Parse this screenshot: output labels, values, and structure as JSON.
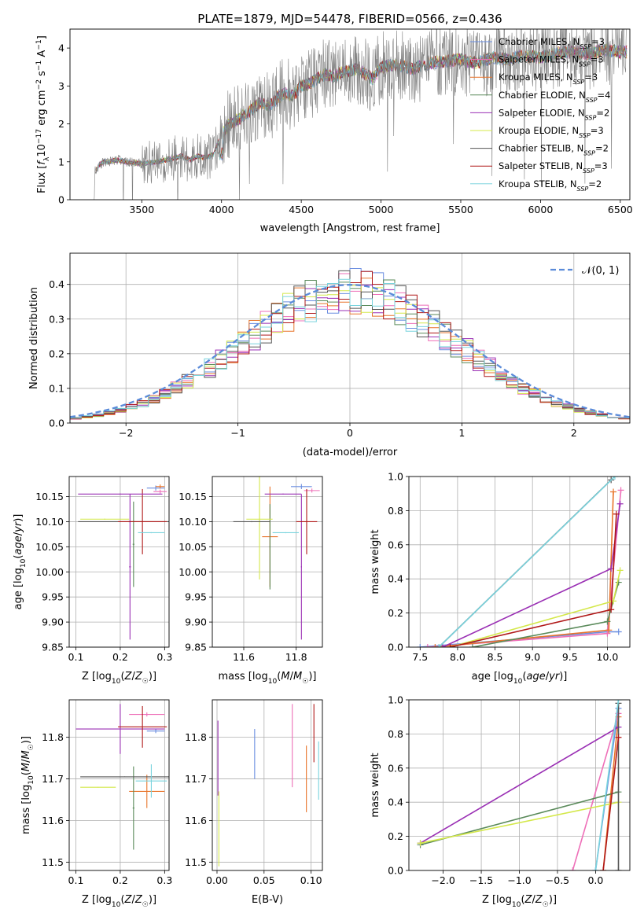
{
  "figure_title": "PLATE=1879, MJD=54478, FIBERID=0566, z=0.436",
  "colors": {
    "chabrier_miles": "#6a8de0",
    "salpeter_miles": "#ee6fb8",
    "kroupa_miles": "#e8742a",
    "chabrier_elodie": "#5a8a5a",
    "salpeter_elodie": "#9a2fb4",
    "kroupa_elodie": "#d4e84a",
    "chabrier_stelib": "#555555",
    "salpeter_stelib": "#b01818",
    "kroupa_stelib": "#79d3dd",
    "data": "#808080"
  },
  "chart_data": [
    {
      "id": "spectrum",
      "type": "line",
      "title": "PLATE=1879, MJD=54478, FIBERID=0566, z=0.436",
      "xlabel": "wavelength [Angstrom, rest frame]",
      "ylabel": "Flux [f_λ 10^-17 erg cm^-2 s^-1 A^-1]",
      "xlim": [
        3050,
        6560
      ],
      "ylim": [
        0,
        4.5
      ],
      "xticks": [
        "3500",
        "4000",
        "4500",
        "5000",
        "5500",
        "6000",
        "6500"
      ],
      "yticks": [
        "0",
        "1",
        "2",
        "3",
        "4"
      ],
      "grid": false,
      "legend_position": "top-right",
      "legend": [
        "Chabrier MILES, N_SSP=3",
        "Salpeter MILES, N_SSP=3",
        "Kroupa MILES, N_SSP=3",
        "Chabrier ELODIE, N_SSP=4",
        "Salpeter ELODIE, N_SSP=2",
        "Kroupa ELODIE, N_SSP=3",
        "Chabrier STELIB, N_SSP=2",
        "Salpeter STELIB, N_SSP=3",
        "Kroupa STELIB, N_SSP=2"
      ],
      "data_envelope": {
        "x": [
          3200,
          3230,
          3260,
          3300,
          3350,
          3400,
          3450,
          3500,
          3550,
          3600,
          3650,
          3700,
          3750,
          3800,
          3850,
          3900,
          3950,
          4000,
          4050,
          4100,
          4150,
          4200,
          4250,
          4300,
          4350,
          4400,
          4450,
          4500,
          4550,
          4600,
          4650,
          4700,
          4750,
          4800,
          4850,
          4900,
          4950,
          5000,
          5100,
          5200,
          5300,
          5400,
          5500,
          5600,
          5700,
          5800,
          5900,
          6000,
          6100,
          6200,
          6300,
          6400,
          6500
        ],
        "y": [
          0.7,
          0.9,
          1.0,
          1.0,
          1.05,
          1.0,
          0.98,
          0.95,
          0.98,
          1.0,
          1.05,
          1.1,
          1.15,
          1.05,
          1.15,
          1.1,
          1.2,
          1.7,
          2.0,
          2.1,
          2.25,
          2.4,
          2.6,
          2.45,
          2.7,
          2.8,
          2.75,
          3.0,
          3.05,
          3.2,
          3.3,
          3.25,
          3.35,
          3.4,
          3.45,
          3.3,
          3.2,
          3.5,
          3.55,
          3.45,
          3.6,
          3.65,
          3.7,
          3.6,
          3.75,
          3.7,
          3.8,
          3.75,
          3.85,
          3.9,
          3.85,
          3.95,
          3.9
        ]
      }
    },
    {
      "id": "residuals",
      "type": "line",
      "xlabel": "(data-model)/error",
      "ylabel": "Normed distribution",
      "xlim": [
        -2.5,
        2.5
      ],
      "ylim": [
        0,
        0.49
      ],
      "xticks": [
        "−2",
        "−1",
        "0",
        "1",
        "2"
      ],
      "yticks": [
        "0.0",
        "0.1",
        "0.2",
        "0.3",
        "0.4"
      ],
      "grid": true,
      "legend_position": "top-right",
      "legend": [
        "𝒩(0, 1)"
      ],
      "series": [
        {
          "name": "𝒩(0, 1)",
          "kind": "gaussian",
          "mean": 0,
          "sigma": 1
        }
      ]
    },
    {
      "id": "age-vs-Z",
      "type": "scatter",
      "xlabel": "Z [log10(Z/Z☉)]",
      "ylabel": "age [log10(age/yr)]",
      "xlim": [
        0.085,
        0.31
      ],
      "ylim": [
        9.85,
        10.19
      ],
      "xticks": [
        "0.1",
        "0.2",
        "0.3"
      ],
      "yticks": [
        "9.85",
        "9.90",
        "9.95",
        "10.00",
        "10.05",
        "10.10",
        "10.15"
      ],
      "grid": true,
      "points": [
        {
          "series": "Chabrier MILES",
          "x": 0.28,
          "y": 10.167,
          "xerr": 0.02,
          "yerr": 0.005
        },
        {
          "series": "Salpeter MILES",
          "x": 0.29,
          "y": 10.16,
          "xerr": 0.015,
          "yerr": 0.004
        },
        {
          "series": "Kroupa MILES",
          "x": 0.29,
          "y": 10.17,
          "xerr": 0.01,
          "yerr": 0.004
        },
        {
          "series": "Chabrier ELODIE",
          "x": 0.23,
          "y": 10.055,
          "xerr": 0.002,
          "yerr": 0.085
        },
        {
          "series": "Salpeter ELODIE",
          "x": 0.222,
          "y": 10.01,
          "xerr": 0.002,
          "yerr": 0.145
        },
        {
          "series": "Kroupa ELODIE",
          "x": 0.165,
          "y": 10.105,
          "xerr": 0.055,
          "yerr": 0.001
        },
        {
          "series": "Chabrier STELIB",
          "x": 0.22,
          "y": 10.1,
          "xerr": 0.115,
          "yerr": 0.001
        },
        {
          "series": "Salpeter STELIB",
          "x": 0.25,
          "y": 10.1,
          "xerr": 0.055,
          "yerr": 0.065
        },
        {
          "series": "Kroupa STELIB",
          "x": 0.27,
          "y": 10.078,
          "xerr": 0.03,
          "yerr": 0.001
        },
        {
          "series": "Salpeter ELODIE",
          "x": 0.2,
          "y": 10.155,
          "xerr": 0.095,
          "yerr": 0.001
        }
      ]
    },
    {
      "id": "age-vs-mass",
      "type": "scatter",
      "xlabel": "mass [log10(M/M☉)]",
      "ylabel": "",
      "xlim": [
        11.48,
        11.9
      ],
      "ylim": [
        9.85,
        10.19
      ],
      "xticks": [
        "11.6",
        "11.8"
      ],
      "yticks": [
        "9.85",
        "9.90",
        "9.95",
        "10.00",
        "10.05",
        "10.10",
        "10.15"
      ],
      "grid": true,
      "points": [
        {
          "series": "Chabrier MILES",
          "x": 11.82,
          "y": 10.17,
          "xerr": 0.04,
          "yerr": 0.005
        },
        {
          "series": "Salpeter MILES",
          "x": 11.86,
          "y": 10.162,
          "xerr": 0.03,
          "yerr": 0.004
        },
        {
          "series": "Kroupa MILES",
          "x": 11.7,
          "y": 10.07,
          "xerr": 0.03,
          "yerr": 0.1
        },
        {
          "series": "Chabrier ELODIE",
          "x": 11.7,
          "y": 10.05,
          "xerr": 0.002,
          "yerr": 0.085
        },
        {
          "series": "Salpeter ELODIE",
          "x": 11.82,
          "y": 10.01,
          "xerr": 0.002,
          "yerr": 0.145
        },
        {
          "series": "Kroupa ELODIE",
          "x": 11.66,
          "y": 10.105,
          "xerr": 0.05,
          "yerr": 0.12
        },
        {
          "series": "Chabrier STELIB",
          "x": 11.63,
          "y": 10.1,
          "xerr": 0.07,
          "yerr": 0.001
        },
        {
          "series": "Salpeter STELIB",
          "x": 11.84,
          "y": 10.1,
          "xerr": 0.04,
          "yerr": 0.065
        },
        {
          "series": "Kroupa STELIB",
          "x": 11.76,
          "y": 10.078,
          "xerr": 0.05,
          "yerr": 0.001
        },
        {
          "series": "Salpeter ELODIE",
          "x": 11.75,
          "y": 10.155,
          "xerr": 0.07,
          "yerr": 0.001
        }
      ]
    },
    {
      "id": "mass-weight-vs-age",
      "type": "line",
      "xlabel": "age [log10(age/yr)]",
      "ylabel": "mass weight",
      "xlim": [
        7.35,
        10.3
      ],
      "ylim": [
        0,
        1.0
      ],
      "xticks": [
        "7.5",
        "8.0",
        "8.5",
        "9.0",
        "9.5",
        "10.0"
      ],
      "yticks": [
        "0.0",
        "0.2",
        "0.4",
        "0.6",
        "0.8",
        "1.0"
      ],
      "grid": true,
      "series": [
        {
          "name": "Chabrier MILES",
          "x": [
            7.5,
            10.0,
            10.15
          ],
          "y": [
            0.0,
            0.09,
            0.09
          ]
        },
        {
          "name": "Salpeter MILES",
          "x": [
            7.6,
            10.0,
            10.18
          ],
          "y": [
            0.0,
            0.08,
            0.92
          ]
        },
        {
          "name": "Kroupa MILES",
          "x": [
            7.7,
            10.02,
            10.08
          ],
          "y": [
            0.0,
            0.1,
            0.91
          ]
        },
        {
          "name": "Chabrier ELODIE",
          "x": [
            8.2,
            10.0,
            10.15
          ],
          "y": [
            0.0,
            0.15,
            0.38
          ]
        },
        {
          "name": "Salpeter ELODIE",
          "x": [
            7.8,
            10.05,
            10.17
          ],
          "y": [
            0.0,
            0.46,
            0.84
          ]
        },
        {
          "name": "Kroupa ELODIE",
          "x": [
            7.9,
            10.08,
            10.17
          ],
          "y": [
            0.0,
            0.27,
            0.45
          ]
        },
        {
          "name": "Chabrier STELIB",
          "x": [
            7.75,
            10.05
          ],
          "y": [
            0.0,
            0.98
          ]
        },
        {
          "name": "Salpeter STELIB",
          "x": [
            7.9,
            10.05,
            10.12
          ],
          "y": [
            0.0,
            0.22,
            0.78
          ]
        },
        {
          "name": "Kroupa STELIB",
          "x": [
            7.75,
            10.1
          ],
          "y": [
            0.0,
            1.0
          ]
        }
      ]
    },
    {
      "id": "mass-vs-Z",
      "type": "scatter",
      "xlabel": "Z [log10(Z/Z☉)]",
      "ylabel": "mass [log10(M/M☉)]",
      "xlim": [
        0.085,
        0.31
      ],
      "ylim": [
        11.48,
        11.89
      ],
      "xticks": [
        "0.1",
        "0.2",
        "0.3"
      ],
      "yticks": [
        "11.5",
        "11.6",
        "11.7",
        "11.8"
      ],
      "grid": true,
      "points": [
        {
          "series": "Chabrier MILES",
          "x": 0.28,
          "y": 11.815,
          "xerr": 0.02,
          "yerr": 0.005
        },
        {
          "series": "Salpeter MILES",
          "x": 0.26,
          "y": 11.855,
          "xerr": 0.04,
          "yerr": 0.005
        },
        {
          "series": "Kroupa MILES",
          "x": 0.26,
          "y": 11.67,
          "xerr": 0.04,
          "yerr": 0.04
        },
        {
          "series": "Chabrier ELODIE",
          "x": 0.23,
          "y": 11.63,
          "xerr": 0.002,
          "yerr": 0.1
        },
        {
          "series": "Salpeter ELODIE",
          "x": 0.2,
          "y": 11.82,
          "xerr": 0.1,
          "yerr": 0.06
        },
        {
          "series": "Kroupa ELODIE",
          "x": 0.15,
          "y": 11.68,
          "xerr": 0.04,
          "yerr": 0.001
        },
        {
          "series": "Chabrier STELIB",
          "x": 0.21,
          "y": 11.705,
          "xerr": 0.1,
          "yerr": 0.001
        },
        {
          "series": "Salpeter STELIB",
          "x": 0.25,
          "y": 11.825,
          "xerr": 0.055,
          "yerr": 0.05
        },
        {
          "series": "Kroupa STELIB",
          "x": 0.27,
          "y": 11.695,
          "xerr": 0.035,
          "yerr": 0.04
        }
      ]
    },
    {
      "id": "mass-vs-ebv",
      "type": "scatter",
      "xlabel": "E(B-V)",
      "ylabel": "",
      "xlim": [
        -0.005,
        0.112
      ],
      "ylim": [
        11.48,
        11.89
      ],
      "xticks": [
        "0.00",
        "0.05",
        "0.10"
      ],
      "yticks": [
        "11.5",
        "11.6",
        "11.7",
        "11.8"
      ],
      "grid": true,
      "points": [
        {
          "series": "Chabrier MILES",
          "x": 0.04,
          "y": 11.76,
          "yerr": 0.06
        },
        {
          "series": "Salpeter MILES",
          "x": 0.08,
          "y": 11.78,
          "yerr": 0.1
        },
        {
          "series": "Kroupa MILES",
          "x": 0.095,
          "y": 11.7,
          "yerr": 0.08
        },
        {
          "series": "Salpeter ELODIE",
          "x": 0.001,
          "y": 11.75,
          "yerr": 0.09
        },
        {
          "series": "Kroupa ELODIE",
          "x": 0.002,
          "y": 11.58,
          "yerr": 0.09
        },
        {
          "series": "Salpeter STELIB",
          "x": 0.103,
          "y": 11.81,
          "yerr": 0.07
        },
        {
          "series": "Kroupa STELIB",
          "x": 0.108,
          "y": 11.72,
          "yerr": 0.07
        }
      ]
    },
    {
      "id": "mass-weight-vs-Z",
      "type": "line",
      "xlabel": "Z [log10(Z/Z☉)]",
      "ylabel": "mass weight",
      "xlim": [
        -2.45,
        0.45
      ],
      "ylim": [
        0,
        1.0
      ],
      "xticks": [
        "−2.0",
        "−1.5",
        "−1.0",
        "−0.5",
        "0.0"
      ],
      "yticks": [
        "0.0",
        "0.2",
        "0.4",
        "0.6",
        "0.8",
        "1.0"
      ],
      "grid": true,
      "series": [
        {
          "name": "Chabrier MILES",
          "x": [
            0.0,
            0.3
          ],
          "y": [
            0.0,
            0.95
          ]
        },
        {
          "name": "Salpeter MILES",
          "x": [
            -0.3,
            0.3
          ],
          "y": [
            0.0,
            0.92
          ]
        },
        {
          "name": "Kroupa MILES",
          "x": [
            0.1,
            0.3
          ],
          "y": [
            0.0,
            0.9
          ]
        },
        {
          "name": "Chabrier ELODIE",
          "x": [
            -2.3,
            0.3
          ],
          "y": [
            0.15,
            0.46
          ]
        },
        {
          "name": "Salpeter ELODIE",
          "x": [
            -2.3,
            0.3
          ],
          "y": [
            0.16,
            0.84
          ]
        },
        {
          "name": "Kroupa ELODIE",
          "x": [
            -2.3,
            0.3
          ],
          "y": [
            0.16,
            0.4
          ]
        },
        {
          "name": "Chabrier STELIB",
          "x": [
            0.3,
            0.3
          ],
          "y": [
            0.0,
            0.98
          ]
        },
        {
          "name": "Salpeter STELIB",
          "x": [
            0.1,
            0.3
          ],
          "y": [
            0.0,
            0.78
          ]
        },
        {
          "name": "Kroupa STELIB",
          "x": [
            0.0,
            0.3
          ],
          "y": [
            0.0,
            1.0
          ]
        }
      ]
    }
  ]
}
